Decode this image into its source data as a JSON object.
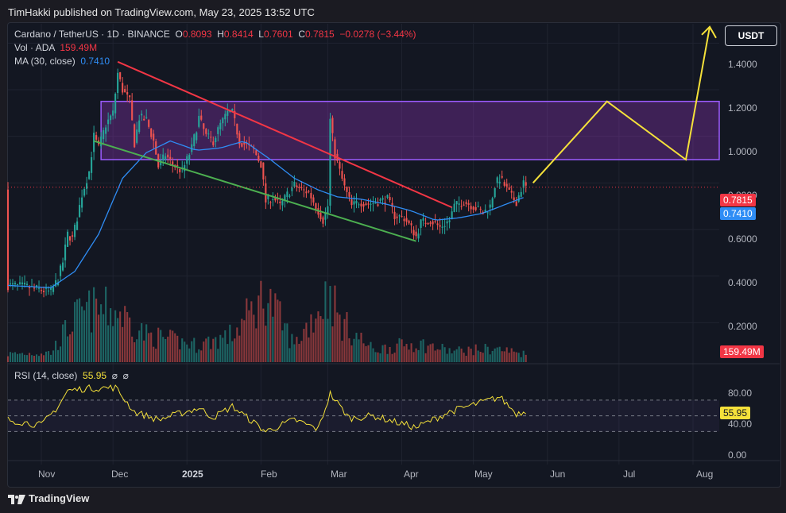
{
  "header": {
    "publisher": "TimHakki published on TradingView.com, May 23, 2025 13:52 UTC"
  },
  "legend": {
    "symbol": "Cardano / TetherUS · 1D · BINANCE",
    "o_label": "O",
    "o": "0.8093",
    "h_label": "H",
    "h": "0.8414",
    "l_label": "L",
    "l": "0.7601",
    "c_label": "C",
    "c": "0.7815",
    "change": "−0.0278 (−3.44%)",
    "vol_label": "Vol · ADA",
    "vol": "159.49M",
    "ma_label": "MA (30, close)",
    "ma": "0.7410"
  },
  "currency_button": "USDT",
  "price_axis": [
    "1.4000",
    "1.2000",
    "1.0000",
    "0.8000",
    "0.6000",
    "0.4000",
    "0.2000"
  ],
  "badges": {
    "last_price": "0.7815",
    "ma": "0.7410",
    "volume": "159.49M",
    "rsi": "55.95"
  },
  "rsi": {
    "label": "RSI (14, close)",
    "value": "55.95",
    "axis": [
      "80.00",
      "40.00",
      "0.00"
    ]
  },
  "time_axis": [
    "Nov",
    "Dec",
    "2025",
    "Feb",
    "Mar",
    "Apr",
    "May",
    "Jun",
    "Jul",
    "Aug"
  ],
  "footer": {
    "brand": "TradingView"
  },
  "colors": {
    "up": "#26a69a",
    "down": "#ef5350",
    "ma": "#2f8df5",
    "rsi": "#f5e13a",
    "zone": "#b03ce0",
    "resistance": "#f23645",
    "support": "#4caf50",
    "projection": "#f5e13a"
  },
  "chart_data": {
    "type": "candlestick",
    "title": "Cardano / TetherUS · 1D · BINANCE",
    "ylim": [
      0,
      1.5
    ],
    "x_range": [
      "2024-10-18",
      "2025-08-12"
    ],
    "grid": true,
    "price_path": [
      [
        "2024-10-18",
        0.36
      ],
      [
        "2024-10-25",
        0.355
      ],
      [
        "2024-11-01",
        0.34
      ],
      [
        "2024-11-05",
        0.33
      ],
      [
        "2024-11-08",
        0.39
      ],
      [
        "2024-11-10",
        0.46
      ],
      [
        "2024-11-12",
        0.58
      ],
      [
        "2024-11-14",
        0.56
      ],
      [
        "2024-11-16",
        0.65
      ],
      [
        "2024-11-18",
        0.75
      ],
      [
        "2024-11-21",
        0.85
      ],
      [
        "2024-11-23",
        1.0
      ],
      [
        "2024-11-25",
        0.95
      ],
      [
        "2024-11-28",
        1.05
      ],
      [
        "2024-12-01",
        1.1
      ],
      [
        "2024-12-03",
        1.27
      ],
      [
        "2024-12-05",
        1.2
      ],
      [
        "2024-12-08",
        1.15
      ],
      [
        "2024-12-10",
        0.97
      ],
      [
        "2024-12-12",
        1.08
      ],
      [
        "2024-12-15",
        1.07
      ],
      [
        "2024-12-18",
        0.98
      ],
      [
        "2024-12-20",
        0.87
      ],
      [
        "2024-12-23",
        0.92
      ],
      [
        "2024-12-26",
        0.88
      ],
      [
        "2024-12-30",
        0.85
      ],
      [
        "2025-01-03",
        0.95
      ],
      [
        "2025-01-06",
        1.08
      ],
      [
        "2025-01-09",
        1.0
      ],
      [
        "2025-01-12",
        0.98
      ],
      [
        "2025-01-15",
        1.05
      ],
      [
        "2025-01-18",
        1.1
      ],
      [
        "2025-01-20",
        1.1
      ],
      [
        "2025-01-23",
        0.98
      ],
      [
        "2025-01-26",
        0.96
      ],
      [
        "2025-01-29",
        0.94
      ],
      [
        "2025-02-01",
        0.88
      ],
      [
        "2025-02-03",
        0.72
      ],
      [
        "2025-02-06",
        0.74
      ],
      [
        "2025-02-09",
        0.7
      ],
      [
        "2025-02-12",
        0.75
      ],
      [
        "2025-02-15",
        0.79
      ],
      [
        "2025-02-18",
        0.77
      ],
      [
        "2025-02-21",
        0.76
      ],
      [
        "2025-02-24",
        0.7
      ],
      [
        "2025-02-27",
        0.64
      ],
      [
        "2025-03-01",
        0.7
      ],
      [
        "2025-03-02",
        1.07
      ],
      [
        "2025-03-04",
        0.92
      ],
      [
        "2025-03-06",
        0.85
      ],
      [
        "2025-03-08",
        0.78
      ],
      [
        "2025-03-11",
        0.7
      ],
      [
        "2025-03-14",
        0.72
      ],
      [
        "2025-03-18",
        0.71
      ],
      [
        "2025-03-22",
        0.72
      ],
      [
        "2025-03-26",
        0.73
      ],
      [
        "2025-03-29",
        0.66
      ],
      [
        "2025-04-02",
        0.65
      ],
      [
        "2025-04-06",
        0.59
      ],
      [
        "2025-04-07",
        0.57
      ],
      [
        "2025-04-09",
        0.63
      ],
      [
        "2025-04-13",
        0.64
      ],
      [
        "2025-04-17",
        0.61
      ],
      [
        "2025-04-21",
        0.64
      ],
      [
        "2025-04-23",
        0.7
      ],
      [
        "2025-04-27",
        0.72
      ],
      [
        "2025-05-01",
        0.7
      ],
      [
        "2025-05-05",
        0.67
      ],
      [
        "2025-05-08",
        0.7
      ],
      [
        "2025-05-10",
        0.79
      ],
      [
        "2025-05-12",
        0.82
      ],
      [
        "2025-05-14",
        0.79
      ],
      [
        "2025-05-17",
        0.74
      ],
      [
        "2025-05-19",
        0.72
      ],
      [
        "2025-05-22",
        0.8
      ],
      [
        "2025-05-23",
        0.7815
      ]
    ],
    "ma30_path": [
      [
        "2024-10-18",
        0.36
      ],
      [
        "2024-11-05",
        0.35
      ],
      [
        "2024-11-15",
        0.42
      ],
      [
        "2024-11-25",
        0.58
      ],
      [
        "2024-12-05",
        0.82
      ],
      [
        "2024-12-15",
        0.93
      ],
      [
        "2024-12-25",
        0.98
      ],
      [
        "2025-01-05",
        0.94
      ],
      [
        "2025-01-15",
        0.95
      ],
      [
        "2025-01-25",
        0.98
      ],
      [
        "2025-02-05",
        0.9
      ],
      [
        "2025-02-15",
        0.82
      ],
      [
        "2025-02-25",
        0.77
      ],
      [
        "2025-03-05",
        0.74
      ],
      [
        "2025-03-15",
        0.73
      ],
      [
        "2025-03-25",
        0.71
      ],
      [
        "2025-04-05",
        0.68
      ],
      [
        "2025-04-15",
        0.64
      ],
      [
        "2025-04-25",
        0.65
      ],
      [
        "2025-05-05",
        0.67
      ],
      [
        "2025-05-15",
        0.71
      ],
      [
        "2025-05-23",
        0.741
      ]
    ],
    "volume_profile": [
      [
        "2024-10-18",
        12
      ],
      [
        "2024-11-05",
        14
      ],
      [
        "2024-11-10",
        40
      ],
      [
        "2024-11-15",
        65
      ],
      [
        "2024-11-22",
        78
      ],
      [
        "2024-12-03",
        75
      ],
      [
        "2024-12-15",
        40
      ],
      [
        "2025-01-05",
        25
      ],
      [
        "2025-01-20",
        40
      ],
      [
        "2025-02-03",
        100
      ],
      [
        "2025-02-15",
        25
      ],
      [
        "2025-03-02",
        105
      ],
      [
        "2025-03-06",
        60
      ],
      [
        "2025-03-20",
        18
      ],
      [
        "2025-04-07",
        28
      ],
      [
        "2025-04-22",
        16
      ],
      [
        "2025-05-10",
        20
      ],
      [
        "2025-05-23",
        12
      ]
    ],
    "rsi_path": [
      [
        "2024-10-18",
        45
      ],
      [
        "2024-11-01",
        38
      ],
      [
        "2024-11-08",
        62
      ],
      [
        "2024-11-12",
        82
      ],
      [
        "2024-11-20",
        85
      ],
      [
        "2024-12-02",
        86
      ],
      [
        "2024-12-10",
        55
      ],
      [
        "2024-12-20",
        45
      ],
      [
        "2025-01-06",
        60
      ],
      [
        "2025-01-12",
        48
      ],
      [
        "2025-01-20",
        62
      ],
      [
        "2025-02-03",
        30
      ],
      [
        "2025-02-15",
        45
      ],
      [
        "2025-02-25",
        33
      ],
      [
        "2025-03-02",
        78
      ],
      [
        "2025-03-10",
        47
      ],
      [
        "2025-03-20",
        50
      ],
      [
        "2025-04-07",
        35
      ],
      [
        "2025-04-21",
        55
      ],
      [
        "2025-05-12",
        74
      ],
      [
        "2025-05-19",
        53
      ],
      [
        "2025-05-23",
        55.95
      ]
    ],
    "rsi_levels": [
      70,
      50,
      30
    ],
    "drawings": {
      "zone": {
        "x": [
          "2024-11-26",
          "2025-08-12"
        ],
        "y": [
          0.9,
          1.15
        ]
      },
      "resistance": [
        [
          "2024-12-03",
          1.32
        ],
        [
          "2025-04-22",
          0.695
        ]
      ],
      "support": [
        [
          "2024-11-23",
          0.98
        ],
        [
          "2025-04-07",
          0.55
        ]
      ],
      "projection": [
        [
          "2025-05-26",
          0.8
        ],
        [
          "2025-06-26",
          1.15
        ],
        [
          "2025-07-29",
          0.9
        ],
        [
          "2025-08-08",
          1.47
        ]
      ]
    }
  }
}
